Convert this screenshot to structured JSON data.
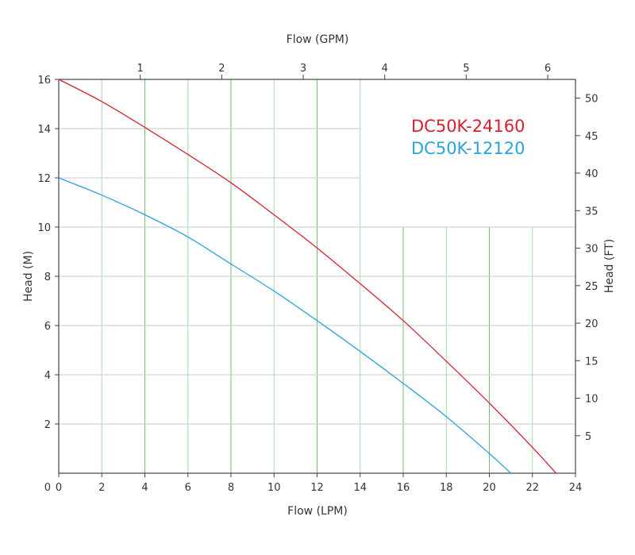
{
  "chart_data": {
    "type": "line",
    "xlabel": "Flow (LPM)",
    "x2label": "Flow (GPM)",
    "ylabel": "Head (M)",
    "y2label": "Head (FT)",
    "xlim": [
      0,
      24
    ],
    "ylim": [
      0,
      16
    ],
    "x2_ticks": [
      1,
      2,
      3,
      4,
      5,
      6
    ],
    "y2_ticks": [
      5,
      10,
      15,
      20,
      25,
      30,
      35,
      40,
      45,
      50
    ],
    "x_ticks": [
      0,
      2,
      4,
      6,
      8,
      10,
      12,
      14,
      16,
      18,
      20,
      22,
      24
    ],
    "y_ticks": [
      2,
      4,
      6,
      8,
      10,
      12,
      14,
      16
    ],
    "grid": true,
    "legend_placement": "top-right",
    "series": [
      {
        "name": "DC50K-24160",
        "color": "#d8202f",
        "x": [
          0,
          2,
          4,
          6,
          8,
          10,
          12,
          14,
          16,
          18,
          20,
          22,
          23.1
        ],
        "y": [
          16,
          15.1,
          14.05,
          12.95,
          11.8,
          10.5,
          9.15,
          7.7,
          6.2,
          4.55,
          2.85,
          1.05,
          0
        ]
      },
      {
        "name": "DC50K-12120",
        "color": "#29a3dc",
        "x": [
          0,
          2,
          4,
          6,
          8,
          10,
          12,
          14,
          16,
          18,
          20,
          21
        ],
        "y": [
          12,
          11.3,
          10.5,
          9.6,
          8.5,
          7.4,
          6.2,
          4.95,
          3.65,
          2.3,
          0.8,
          0
        ]
      }
    ]
  }
}
